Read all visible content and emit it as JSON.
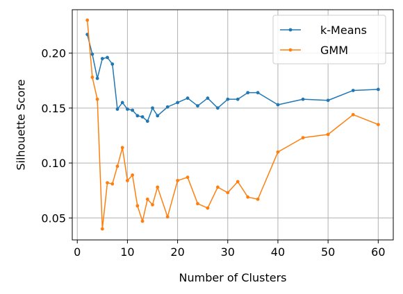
{
  "chart_data": {
    "type": "line",
    "xlabel": "Number of Clusters",
    "ylabel": "Silhouette Score",
    "xlim": [
      -1,
      63
    ],
    "ylim": [
      0.03,
      0.2395
    ],
    "xticks": [
      0,
      10,
      20,
      30,
      40,
      50,
      60
    ],
    "yticks": [
      0.05,
      0.1,
      0.15,
      0.2
    ],
    "xtick_labels": [
      "0",
      "10",
      "20",
      "30",
      "40",
      "50",
      "60"
    ],
    "ytick_labels": [
      "0.05",
      "0.10",
      "0.15",
      "0.20"
    ],
    "grid": true,
    "legend_position": "top-right",
    "x": [
      2,
      3,
      4,
      5,
      6,
      7,
      8,
      9,
      10,
      11,
      12,
      13,
      14,
      15,
      16,
      18,
      20,
      22,
      24,
      26,
      28,
      30,
      32,
      34,
      36,
      40,
      45,
      50,
      55,
      60
    ],
    "series": [
      {
        "name": "k-Means",
        "color": "#1f77b4",
        "values": [
          0.217,
          0.199,
          0.177,
          0.195,
          0.196,
          0.19,
          0.149,
          0.155,
          0.149,
          0.148,
          0.143,
          0.142,
          0.138,
          0.15,
          0.143,
          0.151,
          0.155,
          0.159,
          0.152,
          0.159,
          0.15,
          0.158,
          0.158,
          0.164,
          0.164,
          0.153,
          0.158,
          0.157,
          0.166,
          0.167
        ]
      },
      {
        "name": "GMM",
        "color": "#ff7f0e",
        "values": [
          0.23,
          0.178,
          0.158,
          0.04,
          0.082,
          0.081,
          0.097,
          0.114,
          0.084,
          0.089,
          0.061,
          0.047,
          0.067,
          0.062,
          0.078,
          0.051,
          0.084,
          0.087,
          0.063,
          0.059,
          0.078,
          0.073,
          0.083,
          0.069,
          0.067,
          0.11,
          0.123,
          0.126,
          0.144,
          0.135
        ]
      }
    ]
  }
}
